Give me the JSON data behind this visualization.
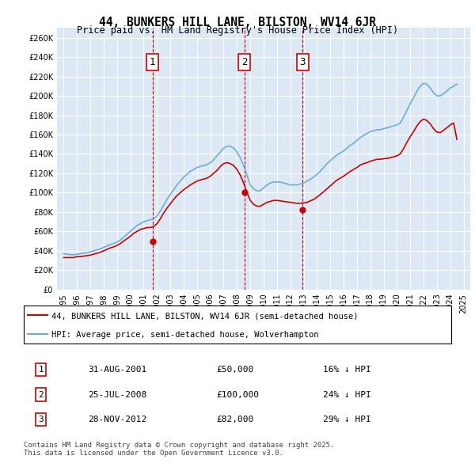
{
  "title": "44, BUNKERS HILL LANE, BILSTON, WV14 6JR",
  "subtitle": "Price paid vs. HM Land Registry's House Price Index (HPI)",
  "bg_color": "#dce9f5",
  "plot_bg_color": "#dce9f5",
  "ylim": [
    0,
    270000
  ],
  "yticks": [
    0,
    20000,
    40000,
    60000,
    80000,
    100000,
    120000,
    140000,
    160000,
    180000,
    200000,
    220000,
    240000,
    260000
  ],
  "xlim_start": 1994.5,
  "xlim_end": 2025.5,
  "xticks": [
    1995,
    1996,
    1997,
    1998,
    1999,
    2000,
    2001,
    2002,
    2003,
    2004,
    2005,
    2006,
    2007,
    2008,
    2009,
    2010,
    2011,
    2012,
    2013,
    2014,
    2015,
    2016,
    2017,
    2018,
    2019,
    2020,
    2021,
    2022,
    2023,
    2024,
    2025
  ],
  "hpi_color": "#6baed6",
  "price_color": "#cc0000",
  "sale_marker_color": "#cc0000",
  "sale_label_color": "#cc0000",
  "dashed_line_color": "#cc0000",
  "grid_color": "#ffffff",
  "sale_dates": [
    2001.67,
    2008.56,
    2012.92
  ],
  "sale_prices": [
    50000,
    100000,
    82000
  ],
  "sale_labels": [
    "1",
    "2",
    "3"
  ],
  "legend_items": [
    "44, BUNKERS HILL LANE, BILSTON, WV14 6JR (semi-detached house)",
    "HPI: Average price, semi-detached house, Wolverhampton"
  ],
  "table_rows": [
    [
      "1",
      "31-AUG-2001",
      "£50,000",
      "16% ↓ HPI"
    ],
    [
      "2",
      "25-JUL-2008",
      "£100,000",
      "24% ↓ HPI"
    ],
    [
      "3",
      "28-NOV-2012",
      "£82,000",
      "29% ↓ HPI"
    ]
  ],
  "footer": "Contains HM Land Registry data © Crown copyright and database right 2025.\nThis data is licensed under the Open Government Licence v3.0.",
  "hpi_data_x": [
    1995.0,
    1995.25,
    1995.5,
    1995.75,
    1996.0,
    1996.25,
    1996.5,
    1996.75,
    1997.0,
    1997.25,
    1997.5,
    1997.75,
    1998.0,
    1998.25,
    1998.5,
    1998.75,
    1999.0,
    1999.25,
    1999.5,
    1999.75,
    2000.0,
    2000.25,
    2000.5,
    2000.75,
    2001.0,
    2001.25,
    2001.5,
    2001.75,
    2002.0,
    2002.25,
    2002.5,
    2002.75,
    2003.0,
    2003.25,
    2003.5,
    2003.75,
    2004.0,
    2004.25,
    2004.5,
    2004.75,
    2005.0,
    2005.25,
    2005.5,
    2005.75,
    2006.0,
    2006.25,
    2006.5,
    2006.75,
    2007.0,
    2007.25,
    2007.5,
    2007.75,
    2008.0,
    2008.25,
    2008.5,
    2008.75,
    2009.0,
    2009.25,
    2009.5,
    2009.75,
    2010.0,
    2010.25,
    2010.5,
    2010.75,
    2011.0,
    2011.25,
    2011.5,
    2011.75,
    2012.0,
    2012.25,
    2012.5,
    2012.75,
    2013.0,
    2013.25,
    2013.5,
    2013.75,
    2014.0,
    2014.25,
    2014.5,
    2014.75,
    2015.0,
    2015.25,
    2015.5,
    2015.75,
    2016.0,
    2016.25,
    2016.5,
    2016.75,
    2017.0,
    2017.25,
    2017.5,
    2017.75,
    2018.0,
    2018.25,
    2018.5,
    2018.75,
    2019.0,
    2019.25,
    2019.5,
    2019.75,
    2020.0,
    2020.25,
    2020.5,
    2020.75,
    2021.0,
    2021.25,
    2021.5,
    2021.75,
    2022.0,
    2022.25,
    2022.5,
    2022.75,
    2023.0,
    2023.25,
    2023.5,
    2023.75,
    2024.0,
    2024.25,
    2024.5
  ],
  "hpi_data_y": [
    37000,
    36500,
    36000,
    36000,
    36500,
    37000,
    37500,
    38000,
    39000,
    40000,
    41000,
    42000,
    43500,
    45000,
    46500,
    47500,
    49000,
    51000,
    54000,
    57000,
    60000,
    63000,
    66000,
    68000,
    70000,
    71000,
    72000,
    73000,
    76000,
    81000,
    87000,
    93000,
    98000,
    103000,
    108000,
    112000,
    116000,
    119000,
    122000,
    124000,
    126000,
    127000,
    128000,
    129000,
    131000,
    134000,
    138000,
    142000,
    146000,
    148000,
    148000,
    146000,
    142000,
    136000,
    128000,
    118000,
    108000,
    104000,
    102000,
    102000,
    105000,
    108000,
    110000,
    111000,
    111000,
    111000,
    110000,
    109000,
    108000,
    108000,
    108000,
    109000,
    110000,
    112000,
    114000,
    116000,
    119000,
    122000,
    126000,
    130000,
    133000,
    136000,
    139000,
    141000,
    143000,
    146000,
    149000,
    151000,
    154000,
    157000,
    159000,
    161000,
    163000,
    164000,
    165000,
    165000,
    166000,
    167000,
    168000,
    169000,
    170000,
    172000,
    178000,
    185000,
    192000,
    198000,
    205000,
    210000,
    213000,
    212000,
    208000,
    203000,
    200000,
    200000,
    202000,
    205000,
    208000,
    210000,
    212000
  ],
  "price_data_x": [
    1995.0,
    1995.25,
    1995.5,
    1995.75,
    1996.0,
    1996.25,
    1996.5,
    1996.75,
    1997.0,
    1997.25,
    1997.5,
    1997.75,
    1998.0,
    1998.25,
    1998.5,
    1998.75,
    1999.0,
    1999.25,
    1999.5,
    1999.75,
    2000.0,
    2000.25,
    2000.5,
    2000.75,
    2001.0,
    2001.25,
    2001.5,
    2001.75,
    2002.0,
    2002.25,
    2002.5,
    2002.75,
    2003.0,
    2003.25,
    2003.5,
    2003.75,
    2004.0,
    2004.25,
    2004.5,
    2004.75,
    2005.0,
    2005.25,
    2005.5,
    2005.75,
    2006.0,
    2006.25,
    2006.5,
    2006.75,
    2007.0,
    2007.25,
    2007.5,
    2007.75,
    2008.0,
    2008.25,
    2008.5,
    2008.75,
    2009.0,
    2009.25,
    2009.5,
    2009.75,
    2010.0,
    2010.25,
    2010.5,
    2010.75,
    2011.0,
    2011.25,
    2011.5,
    2011.75,
    2012.0,
    2012.25,
    2012.5,
    2012.75,
    2013.0,
    2013.25,
    2013.5,
    2013.75,
    2014.0,
    2014.25,
    2014.5,
    2014.75,
    2015.0,
    2015.25,
    2015.5,
    2015.75,
    2016.0,
    2016.25,
    2016.5,
    2016.75,
    2017.0,
    2017.25,
    2017.5,
    2017.75,
    2018.0,
    2018.25,
    2018.5,
    2018.75,
    2019.0,
    2019.25,
    2019.5,
    2019.75,
    2020.0,
    2020.25,
    2020.5,
    2020.75,
    2021.0,
    2021.25,
    2021.5,
    2021.75,
    2022.0,
    2022.25,
    2022.5,
    2022.75,
    2023.0,
    2023.25,
    2023.5,
    2023.75,
    2024.0,
    2024.25,
    2024.5
  ],
  "price_data_y": [
    33000,
    33000,
    33000,
    33000,
    34000,
    34000,
    34500,
    35000,
    35500,
    36500,
    37500,
    38500,
    40000,
    41500,
    43000,
    44000,
    45500,
    47500,
    50000,
    52500,
    55000,
    58000,
    60000,
    62000,
    63000,
    64000,
    64000,
    65000,
    68000,
    73000,
    79000,
    84000,
    88500,
    93000,
    97000,
    100000,
    103000,
    105500,
    108000,
    110000,
    112000,
    113000,
    114000,
    115000,
    117000,
    120000,
    123000,
    127000,
    130000,
    131000,
    130000,
    128000,
    124000,
    118000,
    110000,
    100000,
    92000,
    88000,
    86000,
    86000,
    88000,
    90000,
    91000,
    92000,
    92000,
    91500,
    91000,
    90500,
    90000,
    89500,
    89000,
    89000,
    89500,
    90000,
    91500,
    93000,
    95500,
    98000,
    101000,
    104000,
    107000,
    110000,
    113000,
    115000,
    117000,
    119500,
    122000,
    124000,
    126000,
    128500,
    130000,
    131000,
    132500,
    133500,
    134500,
    134500,
    135000,
    135500,
    136000,
    137000,
    138000,
    140000,
    145500,
    152000,
    158000,
    163000,
    169000,
    173500,
    176000,
    174500,
    171000,
    166000,
    162500,
    162000,
    164500,
    167000,
    170000,
    172000,
    155000
  ]
}
